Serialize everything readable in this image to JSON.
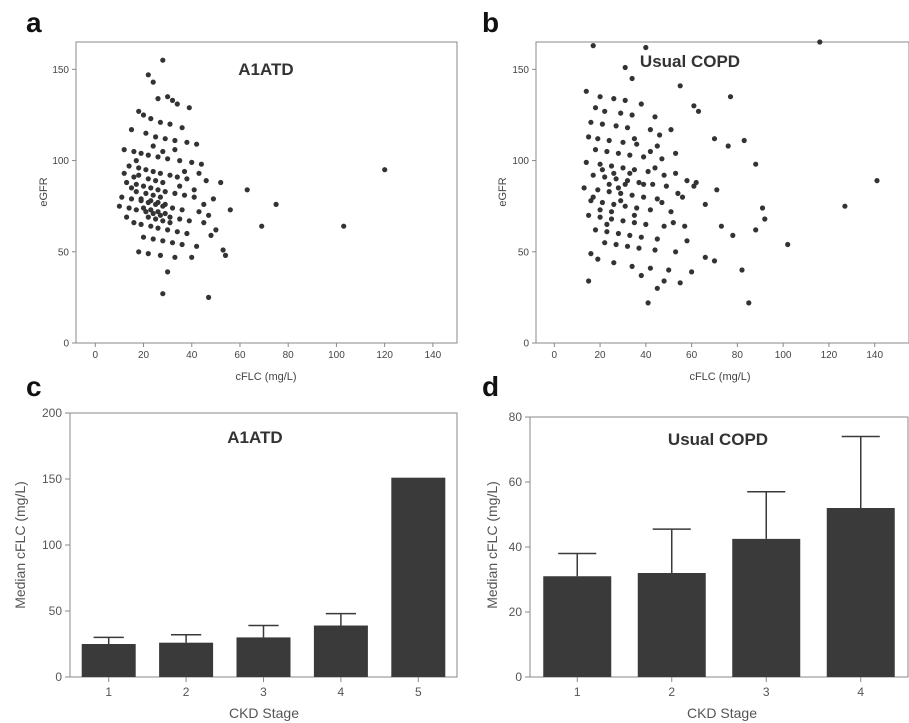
{
  "panels": {
    "a": "a",
    "b": "b",
    "c": "c",
    "d": "d"
  },
  "chart_data": [
    {
      "type": "scatter",
      "title": "A1ATD",
      "xlabel": "cFLC (mg/L)",
      "ylabel": "eGFR",
      "xlim": [
        -8,
        150
      ],
      "ylim": [
        0,
        165
      ],
      "xticks": [
        0,
        20,
        40,
        60,
        80,
        100,
        120,
        140
      ],
      "yticks": [
        0,
        50,
        100,
        150
      ],
      "points": [
        [
          28,
          155
        ],
        [
          22,
          147
        ],
        [
          24,
          143
        ],
        [
          30,
          135
        ],
        [
          32,
          133
        ],
        [
          34,
          131
        ],
        [
          39,
          129
        ],
        [
          26,
          134
        ],
        [
          18,
          127
        ],
        [
          20,
          125
        ],
        [
          23,
          123
        ],
        [
          27,
          121
        ],
        [
          31,
          120
        ],
        [
          36,
          118
        ],
        [
          15,
          117
        ],
        [
          21,
          115
        ],
        [
          25,
          113
        ],
        [
          29,
          112
        ],
        [
          33,
          111
        ],
        [
          38,
          110
        ],
        [
          42,
          109
        ],
        [
          12,
          106
        ],
        [
          16,
          105
        ],
        [
          19,
          104
        ],
        [
          22,
          103
        ],
        [
          26,
          102
        ],
        [
          30,
          101
        ],
        [
          35,
          100
        ],
        [
          40,
          99
        ],
        [
          44,
          98
        ],
        [
          14,
          97
        ],
        [
          18,
          96
        ],
        [
          21,
          95
        ],
        [
          24,
          94
        ],
        [
          27,
          93
        ],
        [
          31,
          92
        ],
        [
          34,
          91
        ],
        [
          38,
          90
        ],
        [
          46,
          89
        ],
        [
          52,
          88
        ],
        [
          63,
          84
        ],
        [
          13,
          88
        ],
        [
          17,
          87
        ],
        [
          20,
          86
        ],
        [
          23,
          85
        ],
        [
          26,
          84
        ],
        [
          29,
          83
        ],
        [
          33,
          82
        ],
        [
          37,
          81
        ],
        [
          41,
          80
        ],
        [
          49,
          79
        ],
        [
          11,
          80
        ],
        [
          15,
          79
        ],
        [
          19,
          78
        ],
        [
          22,
          77
        ],
        [
          25,
          76
        ],
        [
          28,
          75
        ],
        [
          32,
          74
        ],
        [
          36,
          73
        ],
        [
          43,
          72
        ],
        [
          56,
          73
        ],
        [
          75,
          76
        ],
        [
          10,
          75
        ],
        [
          14,
          74
        ],
        [
          17,
          73
        ],
        [
          21,
          72
        ],
        [
          24,
          71
        ],
        [
          27,
          70
        ],
        [
          31,
          69
        ],
        [
          35,
          68
        ],
        [
          39,
          67
        ],
        [
          45,
          66
        ],
        [
          69,
          64
        ],
        [
          16,
          66
        ],
        [
          19,
          65
        ],
        [
          23,
          64
        ],
        [
          26,
          63
        ],
        [
          30,
          62
        ],
        [
          34,
          61
        ],
        [
          38,
          60
        ],
        [
          48,
          59
        ],
        [
          20,
          58
        ],
        [
          24,
          57
        ],
        [
          28,
          56
        ],
        [
          32,
          55
        ],
        [
          36,
          54
        ],
        [
          42,
          53
        ],
        [
          53,
          51
        ],
        [
          18,
          50
        ],
        [
          22,
          49
        ],
        [
          27,
          48
        ],
        [
          33,
          47
        ],
        [
          40,
          47
        ],
        [
          54,
          48
        ],
        [
          30,
          39
        ],
        [
          28,
          27
        ],
        [
          47,
          25
        ],
        [
          103,
          64
        ],
        [
          120,
          95
        ],
        [
          16,
          91
        ],
        [
          18,
          92
        ],
        [
          22,
          90
        ],
        [
          25,
          89
        ],
        [
          28,
          88
        ],
        [
          21,
          82
        ],
        [
          24,
          81
        ],
        [
          27,
          80
        ],
        [
          19,
          79
        ],
        [
          23,
          78
        ],
        [
          26,
          77
        ],
        [
          29,
          76
        ],
        [
          20,
          74
        ],
        [
          23,
          73
        ],
        [
          26,
          72
        ],
        [
          29,
          71
        ],
        [
          22,
          69
        ],
        [
          25,
          68
        ],
        [
          28,
          67
        ],
        [
          31,
          66
        ],
        [
          17,
          83
        ],
        [
          15,
          85
        ],
        [
          35,
          86
        ],
        [
          37,
          94
        ],
        [
          43,
          93
        ],
        [
          41,
          84
        ],
        [
          45,
          76
        ],
        [
          47,
          70
        ],
        [
          50,
          62
        ],
        [
          13,
          69
        ],
        [
          12,
          93
        ],
        [
          17,
          100
        ],
        [
          24,
          108
        ],
        [
          28,
          105
        ],
        [
          33,
          106
        ]
      ]
    },
    {
      "type": "scatter",
      "title": "Usual COPD",
      "xlabel": "cFLC (mg/L)",
      "ylabel": "eGFR",
      "xlim": [
        -8,
        155
      ],
      "ylim": [
        0,
        165
      ],
      "xticks": [
        0,
        20,
        40,
        60,
        80,
        100,
        120,
        140
      ],
      "yticks": [
        0,
        50,
        100,
        150
      ],
      "points": [
        [
          17,
          163
        ],
        [
          40,
          162
        ],
        [
          116,
          165
        ],
        [
          31,
          151
        ],
        [
          34,
          145
        ],
        [
          55,
          141
        ],
        [
          14,
          138
        ],
        [
          20,
          135
        ],
        [
          26,
          134
        ],
        [
          31,
          133
        ],
        [
          38,
          131
        ],
        [
          61,
          130
        ],
        [
          77,
          135
        ],
        [
          18,
          129
        ],
        [
          22,
          127
        ],
        [
          29,
          126
        ],
        [
          34,
          125
        ],
        [
          44,
          124
        ],
        [
          63,
          127
        ],
        [
          16,
          121
        ],
        [
          21,
          120
        ],
        [
          27,
          119
        ],
        [
          32,
          118
        ],
        [
          42,
          117
        ],
        [
          51,
          117
        ],
        [
          70,
          112
        ],
        [
          83,
          111
        ],
        [
          15,
          113
        ],
        [
          19,
          112
        ],
        [
          24,
          111
        ],
        [
          30,
          110
        ],
        [
          36,
          109
        ],
        [
          45,
          108
        ],
        [
          76,
          108
        ],
        [
          18,
          106
        ],
        [
          23,
          105
        ],
        [
          28,
          104
        ],
        [
          33,
          103
        ],
        [
          39,
          102
        ],
        [
          47,
          101
        ],
        [
          14,
          99
        ],
        [
          20,
          98
        ],
        [
          25,
          97
        ],
        [
          30,
          96
        ],
        [
          35,
          95
        ],
        [
          41,
          94
        ],
        [
          53,
          93
        ],
        [
          88,
          98
        ],
        [
          17,
          92
        ],
        [
          22,
          91
        ],
        [
          27,
          90
        ],
        [
          32,
          89
        ],
        [
          37,
          88
        ],
        [
          43,
          87
        ],
        [
          49,
          86
        ],
        [
          58,
          89
        ],
        [
          141,
          89
        ],
        [
          13,
          85
        ],
        [
          19,
          84
        ],
        [
          24,
          83
        ],
        [
          29,
          82
        ],
        [
          34,
          81
        ],
        [
          39,
          80
        ],
        [
          45,
          79
        ],
        [
          54,
          82
        ],
        [
          71,
          84
        ],
        [
          16,
          78
        ],
        [
          21,
          77
        ],
        [
          26,
          76
        ],
        [
          31,
          75
        ],
        [
          36,
          74
        ],
        [
          42,
          73
        ],
        [
          51,
          72
        ],
        [
          66,
          76
        ],
        [
          91,
          74
        ],
        [
          127,
          75
        ],
        [
          15,
          70
        ],
        [
          20,
          69
        ],
        [
          25,
          68
        ],
        [
          30,
          67
        ],
        [
          35,
          66
        ],
        [
          40,
          65
        ],
        [
          48,
          64
        ],
        [
          57,
          64
        ],
        [
          92,
          68
        ],
        [
          18,
          62
        ],
        [
          23,
          61
        ],
        [
          28,
          60
        ],
        [
          33,
          59
        ],
        [
          38,
          58
        ],
        [
          45,
          57
        ],
        [
          78,
          59
        ],
        [
          73,
          64
        ],
        [
          22,
          55
        ],
        [
          27,
          54
        ],
        [
          32,
          53
        ],
        [
          37,
          52
        ],
        [
          44,
          51
        ],
        [
          53,
          50
        ],
        [
          66,
          47
        ],
        [
          88,
          62
        ],
        [
          16,
          49
        ],
        [
          19,
          46
        ],
        [
          26,
          44
        ],
        [
          34,
          42
        ],
        [
          42,
          41
        ],
        [
          50,
          40
        ],
        [
          60,
          39
        ],
        [
          70,
          45
        ],
        [
          82,
          40
        ],
        [
          15,
          34
        ],
        [
          38,
          37
        ],
        [
          48,
          34
        ],
        [
          55,
          33
        ],
        [
          45,
          30
        ],
        [
          41,
          22
        ],
        [
          85,
          22
        ],
        [
          102,
          54
        ],
        [
          24,
          87
        ],
        [
          26,
          93
        ],
        [
          28,
          85
        ],
        [
          31,
          87
        ],
        [
          33,
          93
        ],
        [
          21,
          95
        ],
        [
          25,
          72
        ],
        [
          29,
          78
        ],
        [
          35,
          70
        ],
        [
          39,
          87
        ],
        [
          44,
          96
        ],
        [
          47,
          77
        ],
        [
          52,
          66
        ],
        [
          58,
          56
        ],
        [
          61,
          86
        ],
        [
          17,
          80
        ],
        [
          20,
          73
        ],
        [
          23,
          65
        ],
        [
          42,
          105
        ],
        [
          46,
          114
        ],
        [
          35,
          112
        ],
        [
          53,
          104
        ],
        [
          48,
          92
        ],
        [
          56,
          80
        ],
        [
          62,
          88
        ]
      ]
    },
    {
      "type": "bar",
      "title": "A1ATD",
      "xlabel": "CKD Stage",
      "ylabel": "Median cFLC (mg/L)",
      "categories": [
        "1",
        "2",
        "3",
        "4",
        "5"
      ],
      "values": [
        25,
        26,
        30,
        39,
        151
      ],
      "error_upper": [
        30,
        32,
        39,
        48,
        null
      ],
      "ylim": [
        0,
        200
      ],
      "yticks": [
        0,
        50,
        100,
        150,
        200
      ]
    },
    {
      "type": "bar",
      "title": "Usual COPD",
      "xlabel": "CKD Stage",
      "ylabel": "Median cFLC (mg/L)",
      "categories": [
        "1",
        "2",
        "3",
        "4"
      ],
      "values": [
        31,
        32,
        42.5,
        52
      ],
      "error_upper": [
        38,
        45.5,
        57,
        74
      ],
      "ylim": [
        0,
        80
      ],
      "yticks": [
        0,
        20,
        40,
        60,
        80
      ]
    }
  ]
}
